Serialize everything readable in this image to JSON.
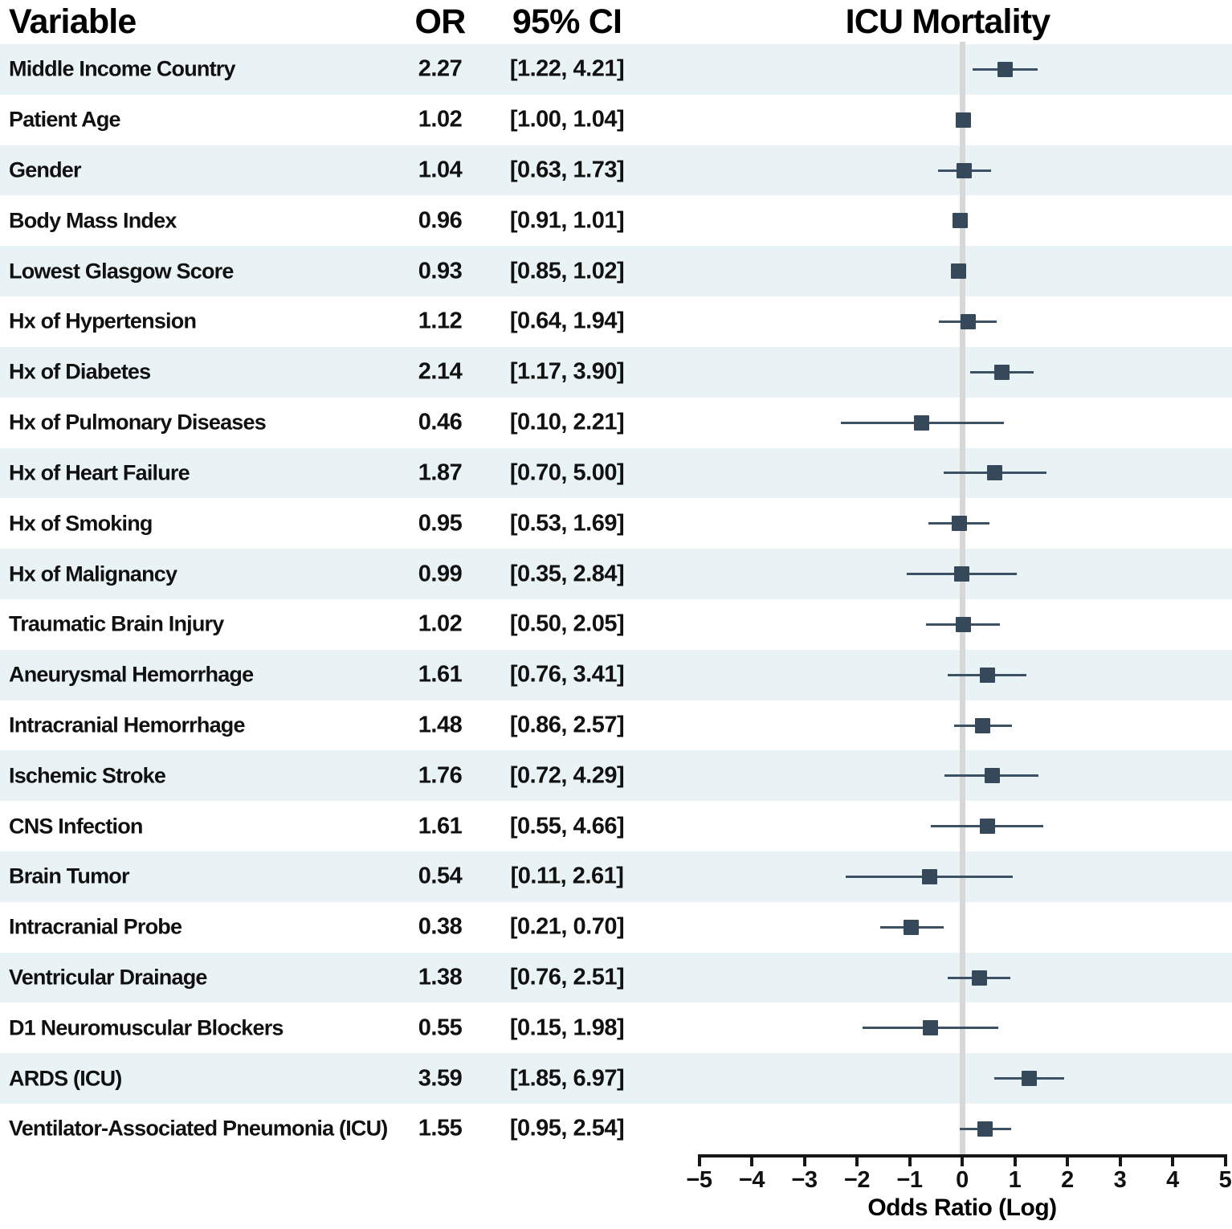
{
  "header": {
    "variable": "Variable",
    "or": "OR",
    "ci": "95% CI",
    "plot_title": "ICU Mortality"
  },
  "axis": {
    "label": "Odds Ratio (Log)",
    "min": -5,
    "max": 5,
    "ticks": [
      {
        "value": -5,
        "label": "−5"
      },
      {
        "value": -4,
        "label": "−4"
      },
      {
        "value": -3,
        "label": "−3"
      },
      {
        "value": -2,
        "label": "−2"
      },
      {
        "value": -1,
        "label": "−1"
      },
      {
        "value": 0,
        "label": "0"
      },
      {
        "value": 1,
        "label": "1"
      },
      {
        "value": 2,
        "label": "2"
      },
      {
        "value": 3,
        "label": "3"
      },
      {
        "value": 4,
        "label": "4"
      },
      {
        "value": 5,
        "label": "5"
      }
    ]
  },
  "colors": {
    "marker": "#36495b",
    "whisker": "#3d5164",
    "row_band": "#e9f2f4",
    "zero_line": "#d7d7d7",
    "axis": "#161616"
  },
  "chart_data": {
    "type": "forest",
    "title": "ICU Mortality",
    "xlabel": "Odds Ratio (Log)",
    "x_scale": "natural log of odds ratio",
    "xlim": [
      -5,
      5
    ],
    "reference_line": 0,
    "columns": [
      "Variable",
      "OR",
      "95% CI"
    ],
    "rows": [
      {
        "variable": "Middle Income Country",
        "or": 2.27,
        "ci_low": 1.22,
        "ci_high": 4.21,
        "or_text": "2.27",
        "ci_text": "[1.22, 4.21]"
      },
      {
        "variable": "Patient Age",
        "or": 1.02,
        "ci_low": 1.0,
        "ci_high": 1.04,
        "or_text": "1.02",
        "ci_text": "[1.00, 1.04]"
      },
      {
        "variable": "Gender",
        "or": 1.04,
        "ci_low": 0.63,
        "ci_high": 1.73,
        "or_text": "1.04",
        "ci_text": "[0.63, 1.73]"
      },
      {
        "variable": "Body Mass Index",
        "or": 0.96,
        "ci_low": 0.91,
        "ci_high": 1.01,
        "or_text": "0.96",
        "ci_text": "[0.91, 1.01]"
      },
      {
        "variable": "Lowest Glasgow Score",
        "or": 0.93,
        "ci_low": 0.85,
        "ci_high": 1.02,
        "or_text": "0.93",
        "ci_text": "[0.85, 1.02]"
      },
      {
        "variable": "Hx of Hypertension",
        "or": 1.12,
        "ci_low": 0.64,
        "ci_high": 1.94,
        "or_text": "1.12",
        "ci_text": "[0.64, 1.94]"
      },
      {
        "variable": "Hx of Diabetes",
        "or": 2.14,
        "ci_low": 1.17,
        "ci_high": 3.9,
        "or_text": "2.14",
        "ci_text": "[1.17, 3.90]"
      },
      {
        "variable": "Hx of Pulmonary Diseases",
        "or": 0.46,
        "ci_low": 0.1,
        "ci_high": 2.21,
        "or_text": "0.46",
        "ci_text": "[0.10, 2.21]"
      },
      {
        "variable": "Hx of Heart Failure",
        "or": 1.87,
        "ci_low": 0.7,
        "ci_high": 5.0,
        "or_text": "1.87",
        "ci_text": "[0.70, 5.00]"
      },
      {
        "variable": "Hx of Smoking",
        "or": 0.95,
        "ci_low": 0.53,
        "ci_high": 1.69,
        "or_text": "0.95",
        "ci_text": "[0.53, 1.69]"
      },
      {
        "variable": "Hx of Malignancy",
        "or": 0.99,
        "ci_low": 0.35,
        "ci_high": 2.84,
        "or_text": "0.99",
        "ci_text": "[0.35, 2.84]"
      },
      {
        "variable": "Traumatic Brain Injury",
        "or": 1.02,
        "ci_low": 0.5,
        "ci_high": 2.05,
        "or_text": "1.02",
        "ci_text": "[0.50, 2.05]"
      },
      {
        "variable": "Aneurysmal Hemorrhage",
        "or": 1.61,
        "ci_low": 0.76,
        "ci_high": 3.41,
        "or_text": "1.61",
        "ci_text": "[0.76, 3.41]"
      },
      {
        "variable": "Intracranial Hemorrhage",
        "or": 1.48,
        "ci_low": 0.86,
        "ci_high": 2.57,
        "or_text": "1.48",
        "ci_text": "[0.86, 2.57]"
      },
      {
        "variable": "Ischemic Stroke",
        "or": 1.76,
        "ci_low": 0.72,
        "ci_high": 4.29,
        "or_text": "1.76",
        "ci_text": "[0.72, 4.29]"
      },
      {
        "variable": "CNS Infection",
        "or": 1.61,
        "ci_low": 0.55,
        "ci_high": 4.66,
        "or_text": "1.61",
        "ci_text": "[0.55, 4.66]"
      },
      {
        "variable": "Brain Tumor",
        "or": 0.54,
        "ci_low": 0.11,
        "ci_high": 2.61,
        "or_text": "0.54",
        "ci_text": "[0.11, 2.61]"
      },
      {
        "variable": "Intracranial Probe",
        "or": 0.38,
        "ci_low": 0.21,
        "ci_high": 0.7,
        "or_text": "0.38",
        "ci_text": "[0.21, 0.70]"
      },
      {
        "variable": "Ventricular Drainage",
        "or": 1.38,
        "ci_low": 0.76,
        "ci_high": 2.51,
        "or_text": "1.38",
        "ci_text": "[0.76, 2.51]"
      },
      {
        "variable": "D1 Neuromuscular Blockers",
        "or": 0.55,
        "ci_low": 0.15,
        "ci_high": 1.98,
        "or_text": "0.55",
        "ci_text": "[0.15, 1.98]"
      },
      {
        "variable": "ARDS (ICU)",
        "or": 3.59,
        "ci_low": 1.85,
        "ci_high": 6.97,
        "or_text": "3.59",
        "ci_text": "[1.85, 6.97]"
      },
      {
        "variable": "Ventilator-Associated Pneumonia (ICU)",
        "or": 1.55,
        "ci_low": 0.95,
        "ci_high": 2.54,
        "or_text": "1.55",
        "ci_text": "[0.95, 2.54]"
      }
    ]
  }
}
